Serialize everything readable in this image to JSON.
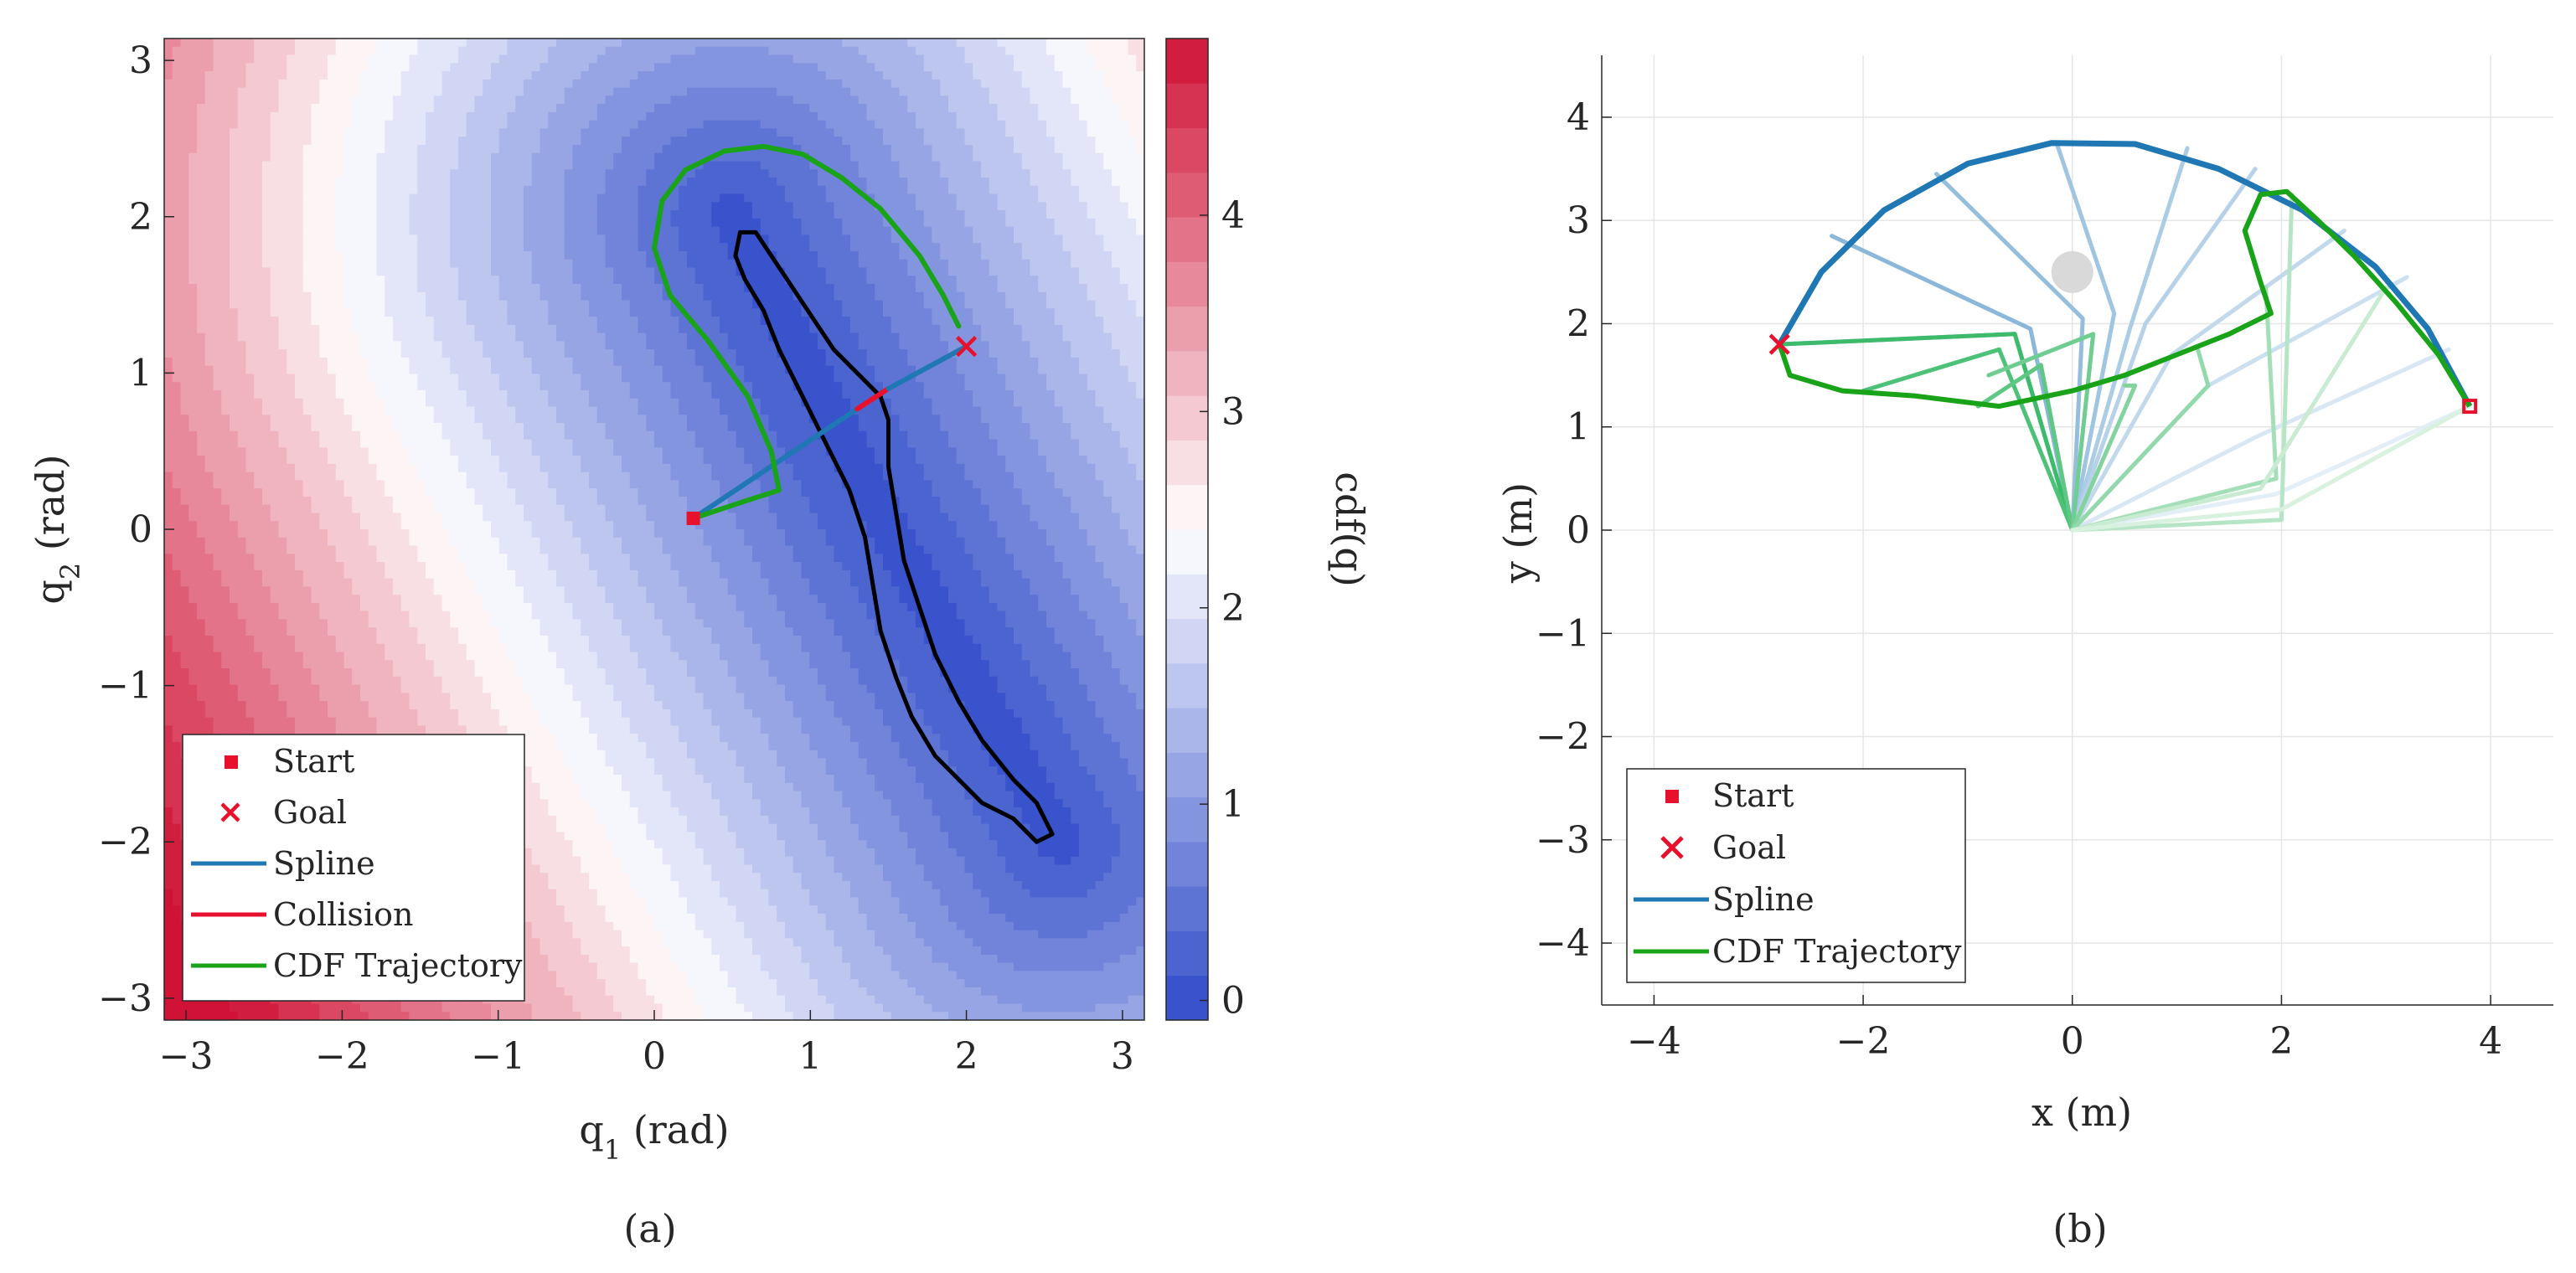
{
  "colors": {
    "spline": "#1f77b4",
    "collision": "#e8112d",
    "cdf_trajectory": "#19a319",
    "start_goal": "#e8112d",
    "obstacle_boundary": "#000000",
    "cmap_low": "#2f4bc8",
    "cmap_mid": "#ffffff",
    "cmap_high": "#cf1235",
    "obstacle_disk": "#d9d9d9",
    "grid": "#e6e6e6"
  },
  "chart_data": [
    {
      "type": "heatmap",
      "caption": "(a)",
      "xlabel": "q",
      "xlabel_sub": "1",
      "xlabel_unit": " (rad)",
      "ylabel": "q",
      "ylabel_sub": "2",
      "ylabel_unit": " (rad)",
      "xlim": [
        -3.14,
        3.14
      ],
      "ylim": [
        -3.14,
        3.14
      ],
      "xticks": [
        -3,
        -2,
        -1,
        0,
        1,
        2,
        3
      ],
      "yticks": [
        -3,
        -2,
        -1,
        0,
        1,
        2,
        3
      ],
      "colorbar": {
        "label": "cdf(q)",
        "range": [
          -0.1,
          4.9
        ],
        "ticks": [
          0,
          1,
          2,
          3,
          4
        ],
        "levels": 22
      },
      "contour_field": {
        "description_free": true,
        "centerline": [
          [
            2.6,
            -2.0
          ],
          [
            1.5,
            0.0
          ],
          [
            0.5,
            2.0
          ]
        ],
        "base": 0.0,
        "slope": 0.95
      },
      "obstacle_boundary": [
        [
          0.55,
          1.9
        ],
        [
          0.65,
          1.9
        ],
        [
          0.75,
          1.75
        ],
        [
          0.85,
          1.6
        ],
        [
          0.95,
          1.45
        ],
        [
          1.05,
          1.3
        ],
        [
          1.15,
          1.15
        ],
        [
          1.3,
          1.0
        ],
        [
          1.45,
          0.85
        ],
        [
          1.5,
          0.7
        ],
        [
          1.5,
          0.4
        ],
        [
          1.55,
          0.1
        ],
        [
          1.6,
          -0.2
        ],
        [
          1.7,
          -0.5
        ],
        [
          1.8,
          -0.8
        ],
        [
          1.95,
          -1.1
        ],
        [
          2.1,
          -1.35
        ],
        [
          2.3,
          -1.6
        ],
        [
          2.45,
          -1.75
        ],
        [
          2.55,
          -1.95
        ],
        [
          2.45,
          -2.0
        ],
        [
          2.3,
          -1.85
        ],
        [
          2.1,
          -1.75
        ],
        [
          1.95,
          -1.6
        ],
        [
          1.8,
          -1.45
        ],
        [
          1.65,
          -1.2
        ],
        [
          1.55,
          -0.95
        ],
        [
          1.45,
          -0.65
        ],
        [
          1.4,
          -0.35
        ],
        [
          1.35,
          -0.05
        ],
        [
          1.25,
          0.25
        ],
        [
          1.1,
          0.55
        ],
        [
          0.95,
          0.85
        ],
        [
          0.8,
          1.15
        ],
        [
          0.7,
          1.4
        ],
        [
          0.58,
          1.6
        ],
        [
          0.52,
          1.75
        ]
      ],
      "series": [
        {
          "name": "Spline",
          "type": "line",
          "points": [
            [
              0.25,
              0.07
            ],
            [
              1.3,
              0.77
            ]
          ]
        },
        {
          "name": "Collision",
          "type": "line",
          "points": [
            [
              1.3,
              0.77
            ],
            [
              1.5,
              0.9
            ]
          ]
        },
        {
          "name": "Spline_tail",
          "type": "line",
          "points": [
            [
              1.5,
              0.9
            ],
            [
              2.0,
              1.17
            ]
          ]
        },
        {
          "name": "CDF Trajectory",
          "type": "line",
          "points": [
            [
              0.25,
              0.07
            ],
            [
              0.55,
              0.17
            ],
            [
              0.8,
              0.25
            ],
            [
              0.75,
              0.5
            ],
            [
              0.6,
              0.85
            ],
            [
              0.35,
              1.2
            ],
            [
              0.1,
              1.5
            ],
            [
              0.0,
              1.8
            ],
            [
              0.05,
              2.1
            ],
            [
              0.2,
              2.3
            ],
            [
              0.45,
              2.42
            ],
            [
              0.7,
              2.45
            ],
            [
              0.95,
              2.4
            ],
            [
              1.2,
              2.25
            ],
            [
              1.45,
              2.05
            ],
            [
              1.7,
              1.75
            ],
            [
              1.85,
              1.5
            ],
            [
              1.95,
              1.3
            ]
          ]
        }
      ],
      "start": [
        0.25,
        0.07
      ],
      "goal": [
        2.0,
        1.17
      ],
      "legend": {
        "placement": "lower-left",
        "entries": [
          "Start",
          "Goal",
          "Spline",
          "Collision",
          "CDF Trajectory"
        ]
      }
    },
    {
      "type": "line",
      "caption": "(b)",
      "xlabel": "x (m)",
      "ylabel": "y (m)",
      "xlim": [
        -4.5,
        4.6
      ],
      "ylim": [
        -4.6,
        4.6
      ],
      "xticks": [
        -4,
        -2,
        0,
        2,
        4
      ],
      "yticks": [
        -4,
        -3,
        -2,
        -1,
        0,
        1,
        2,
        3,
        4
      ],
      "grid": true,
      "obstacle": {
        "center": [
          0.0,
          2.5
        ],
        "radius": 0.2
      },
      "spline_ee": [
        [
          -2.8,
          1.8
        ],
        [
          -2.4,
          2.5
        ],
        [
          -1.8,
          3.1
        ],
        [
          -1.0,
          3.55
        ],
        [
          -0.2,
          3.75
        ],
        [
          0.6,
          3.74
        ],
        [
          1.4,
          3.5
        ],
        [
          2.2,
          3.1
        ],
        [
          2.9,
          2.55
        ],
        [
          3.4,
          1.95
        ],
        [
          3.8,
          1.2
        ]
      ],
      "cdf_ee": [
        [
          3.8,
          1.2
        ],
        [
          3.5,
          1.7
        ],
        [
          3.1,
          2.2
        ],
        [
          2.7,
          2.65
        ],
        [
          2.35,
          3.0
        ],
        [
          2.05,
          3.28
        ],
        [
          1.8,
          3.25
        ],
        [
          1.65,
          2.9
        ],
        [
          1.8,
          2.4
        ],
        [
          1.9,
          2.1
        ],
        [
          1.5,
          1.9
        ],
        [
          1.0,
          1.7
        ],
        [
          0.5,
          1.5
        ],
        [
          0.0,
          1.35
        ],
        [
          -0.7,
          1.2
        ],
        [
          -1.5,
          1.3
        ],
        [
          -2.2,
          1.35
        ],
        [
          -2.7,
          1.5
        ],
        [
          -2.8,
          1.8
        ]
      ],
      "spline_arms": [
        {
          "elbow": [
            -0.55,
            1.9
          ],
          "ee": [
            -2.8,
            1.8
          ]
        },
        {
          "elbow": [
            -0.4,
            1.95
          ],
          "ee": [
            -2.3,
            2.85
          ]
        },
        {
          "elbow": [
            0.1,
            2.05
          ],
          "ee": [
            -1.3,
            3.45
          ]
        },
        {
          "elbow": [
            0.4,
            2.1
          ],
          "ee": [
            -0.15,
            3.75
          ]
        },
        {
          "elbow": [
            0.55,
            1.95
          ],
          "ee": [
            1.1,
            3.7
          ]
        },
        {
          "elbow": [
            0.7,
            2.0
          ],
          "ee": [
            1.75,
            3.5
          ]
        },
        {
          "elbow": [
            0.95,
            1.7
          ],
          "ee": [
            2.6,
            2.9
          ]
        },
        {
          "elbow": [
            1.3,
            1.4
          ],
          "ee": [
            3.2,
            2.45
          ]
        },
        {
          "elbow": [
            1.75,
            0.9
          ],
          "ee": [
            3.6,
            1.75
          ]
        },
        {
          "elbow": [
            1.95,
            0.35
          ],
          "ee": [
            3.8,
            1.2
          ]
        }
      ],
      "cdf_arms": [
        {
          "elbow": [
            -0.55,
            1.9
          ],
          "ee": [
            -2.8,
            1.8
          ]
        },
        {
          "elbow": [
            -0.7,
            1.75
          ],
          "ee": [
            -2.0,
            1.35
          ]
        },
        {
          "elbow": [
            -0.3,
            1.6
          ],
          "ee": [
            -0.9,
            1.2
          ]
        },
        {
          "elbow": [
            0.2,
            1.9
          ],
          "ee": [
            -0.8,
            1.5
          ]
        },
        {
          "elbow": [
            0.6,
            1.4
          ],
          "ee": [
            0.5,
            1.4
          ]
        },
        {
          "elbow": [
            1.3,
            1.4
          ],
          "ee": [
            1.2,
            1.75
          ]
        },
        {
          "elbow": [
            1.95,
            0.5
          ],
          "ee": [
            1.85,
            2.35
          ]
        },
        {
          "elbow": [
            2.0,
            0.1
          ],
          "ee": [
            2.1,
            3.25
          ]
        },
        {
          "elbow": [
            1.8,
            0.4
          ],
          "ee": [
            3.0,
            2.35
          ]
        },
        {
          "elbow": [
            2.0,
            0.2
          ],
          "ee": [
            3.8,
            1.2
          ]
        }
      ],
      "start": [
        3.8,
        1.2
      ],
      "goal": [
        -2.8,
        1.8
      ],
      "legend": {
        "placement": "lower-left",
        "entries": [
          "Start",
          "Goal",
          "Spline",
          "CDF Trajectory"
        ]
      }
    }
  ]
}
